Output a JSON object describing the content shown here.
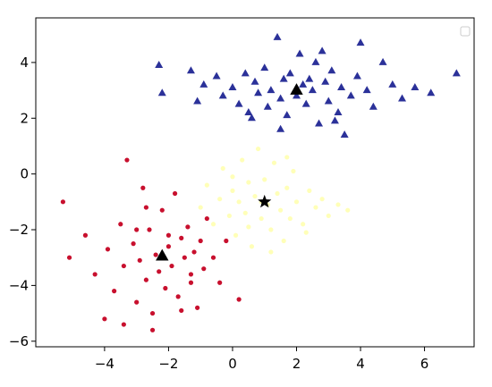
{
  "chart_data": {
    "type": "scatter",
    "xlim": [
      -6.15,
      7.55
    ],
    "ylim": [
      -6.2,
      5.6
    ],
    "xticks": [
      {
        "value": -4,
        "label": "−4"
      },
      {
        "value": -2,
        "label": "−2"
      },
      0,
      2,
      4,
      6
    ],
    "yticks": [
      {
        "value": -6,
        "label": "−6"
      },
      {
        "value": -4,
        "label": "−4"
      },
      {
        "value": -2,
        "label": "−2"
      },
      0,
      2,
      4
    ],
    "grid": false,
    "series": [
      {
        "color": "#2b3199",
        "marker": "triangle",
        "x": [
          -2.3,
          -2.2,
          -1.3,
          -1.1,
          -0.9,
          -0.5,
          -0.3,
          0,
          0.2,
          0.4,
          0.5,
          0.7,
          0.8,
          1.0,
          1.1,
          1.2,
          1.4,
          1.5,
          1.6,
          1.7,
          1.8,
          2.0,
          2.1,
          2.2,
          2.3,
          2.5,
          2.6,
          2.7,
          2.9,
          3.0,
          3.1,
          3.3,
          3.4,
          3.5,
          3.7,
          3.9,
          4.0,
          4.2,
          4.4,
          4.7,
          5.0,
          5.3,
          5.7,
          6.2,
          7.0,
          1.5,
          2.8,
          0.6,
          3.2,
          2.4
        ],
        "values": [
          3.9,
          2.9,
          3.7,
          2.6,
          3.2,
          3.5,
          2.8,
          3.1,
          2.5,
          3.6,
          2.2,
          3.3,
          2.9,
          3.8,
          2.4,
          3.0,
          4.9,
          2.7,
          3.4,
          2.1,
          3.6,
          2.8,
          4.3,
          3.2,
          2.5,
          3.0,
          4.0,
          1.8,
          3.3,
          2.6,
          3.7,
          2.2,
          3.1,
          1.4,
          2.8,
          3.5,
          4.7,
          3.0,
          2.4,
          4.0,
          3.2,
          2.7,
          3.1,
          2.9,
          3.6,
          1.6,
          4.4,
          2.0,
          1.9,
          3.4
        ]
      },
      {
        "color": "#ffffb8",
        "marker": "circle",
        "x": [
          -1.0,
          -0.8,
          -0.6,
          -0.4,
          -0.3,
          -0.1,
          0,
          0.1,
          0.2,
          0.3,
          0.4,
          0.5,
          0.6,
          0.7,
          0.8,
          0.9,
          1.0,
          1.1,
          1.2,
          1.3,
          1.4,
          1.5,
          1.6,
          1.7,
          1.8,
          1.9,
          2.0,
          2.2,
          2.4,
          2.6,
          2.8,
          3.0,
          3.3,
          3.6,
          0.5,
          1.2,
          0.0,
          1.7,
          2.3,
          0.9
        ],
        "values": [
          -1.2,
          -0.4,
          -1.8,
          -0.9,
          0.2,
          -1.5,
          -0.6,
          -2.2,
          -1.0,
          0.5,
          -1.4,
          -0.3,
          -2.6,
          -0.8,
          0.9,
          -1.6,
          -0.2,
          -1.1,
          -2.0,
          0.4,
          -0.7,
          -1.3,
          -2.4,
          -0.5,
          -1.6,
          0.1,
          -1.0,
          -1.8,
          -0.6,
          -1.2,
          -0.9,
          -1.5,
          -1.1,
          -1.3,
          -1.9,
          -2.8,
          -0.1,
          0.6,
          -2.1,
          -1.0
        ]
      },
      {
        "color": "#c8102e",
        "marker": "circle",
        "x": [
          -5.3,
          -5.1,
          -4.6,
          -4.3,
          -4.0,
          -3.9,
          -3.7,
          -3.5,
          -3.4,
          -3.3,
          -3.1,
          -3.0,
          -2.9,
          -2.8,
          -2.7,
          -2.6,
          -2.5,
          -2.4,
          -2.3,
          -2.2,
          -2.1,
          -2.0,
          -1.9,
          -1.8,
          -1.7,
          -1.6,
          -1.5,
          -1.4,
          -1.3,
          -1.2,
          -1.1,
          -1.0,
          -0.9,
          -0.8,
          -0.6,
          -0.4,
          -0.2,
          0.2,
          -3.4,
          -2.5,
          -1.6,
          -3.0,
          -2.0,
          -1.3,
          -2.7
        ],
        "values": [
          -1.0,
          -3.0,
          -2.2,
          -3.6,
          -5.2,
          -2.7,
          -4.2,
          -1.8,
          -3.3,
          0.5,
          -2.5,
          -4.6,
          -3.1,
          -0.5,
          -3.8,
          -2.0,
          -5.0,
          -2.9,
          -3.5,
          -1.3,
          -4.1,
          -2.6,
          -3.3,
          -0.7,
          -4.4,
          -2.3,
          -3.0,
          -1.9,
          -3.9,
          -2.8,
          -4.8,
          -2.4,
          -3.4,
          -1.6,
          -3.0,
          -3.9,
          -2.4,
          -4.5,
          -5.4,
          -5.6,
          -4.9,
          -2.0,
          -2.2,
          -3.6,
          -1.2
        ]
      },
      {
        "color": "#000000",
        "marker": "triangle",
        "x": [
          2.0
        ],
        "values": [
          3.0
        ]
      },
      {
        "color": "#000000",
        "marker": "star",
        "x": [
          1.0
        ],
        "values": [
          -1.0
        ]
      },
      {
        "color": "#000000",
        "marker": "triangle",
        "x": [
          -2.2
        ],
        "values": [
          -2.95
        ]
      }
    ]
  }
}
